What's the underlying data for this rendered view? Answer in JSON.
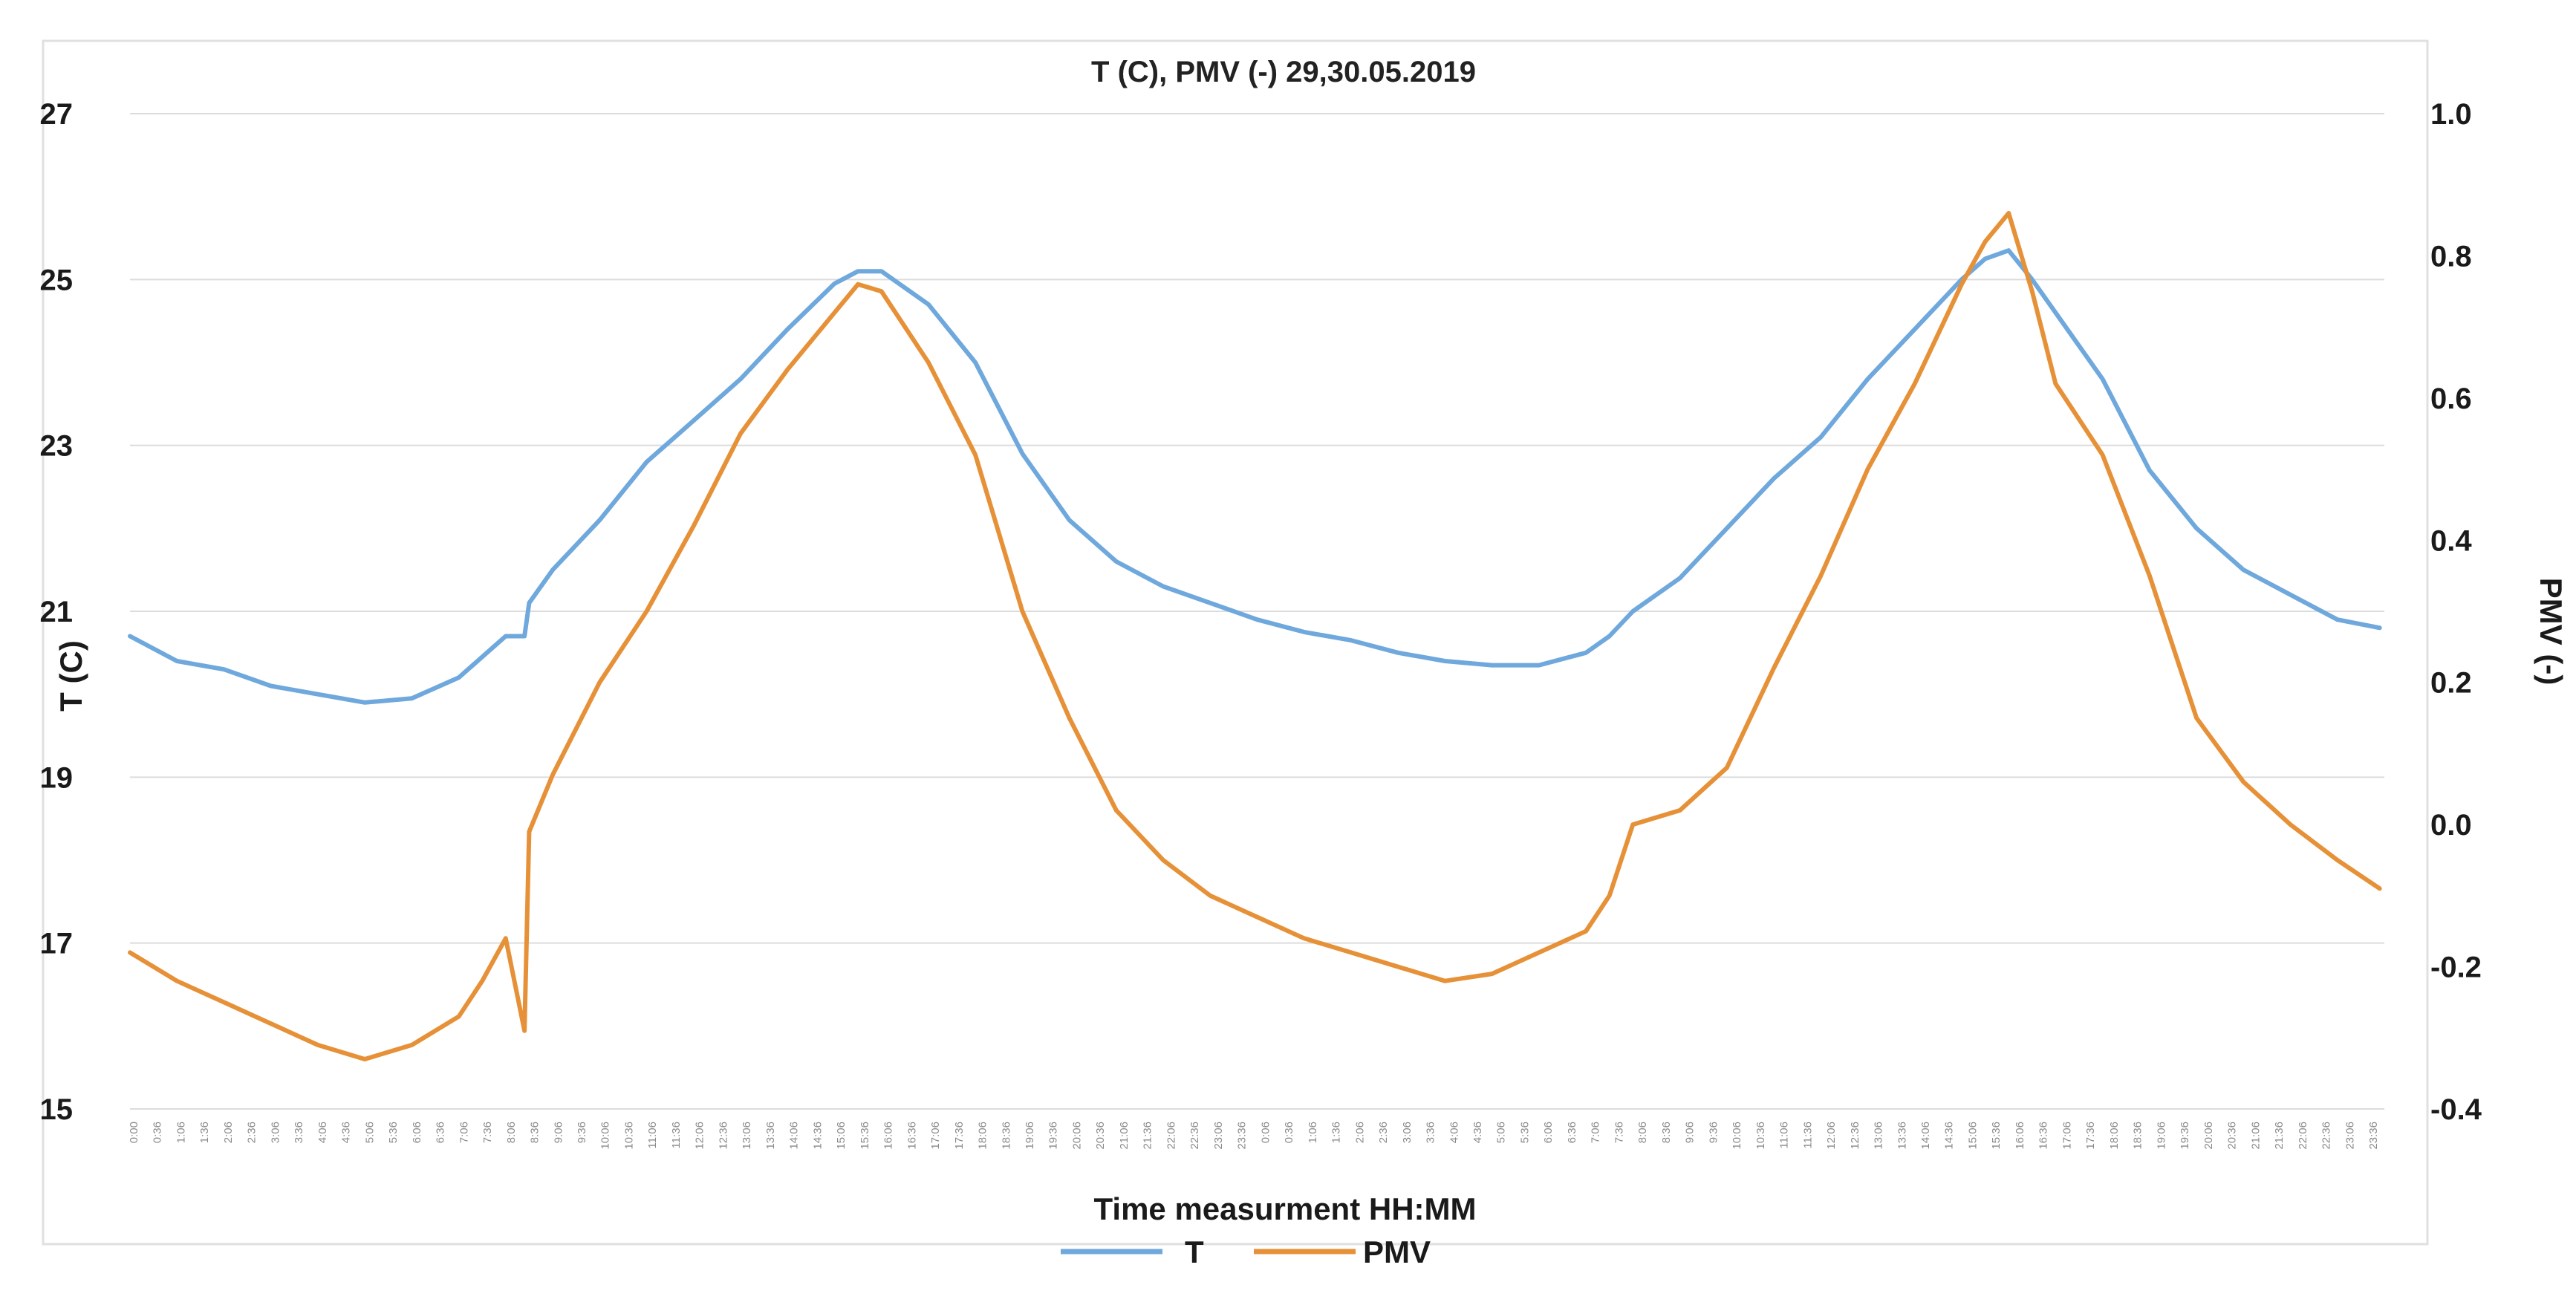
{
  "chart_data": {
    "type": "line",
    "title": "T (C), PMV (-) 29,30.05.2019",
    "xlabel": "Time measurment HH:MM",
    "ylabel_left": "T (C)",
    "ylabel_right": "PMV (-)",
    "y_left_lim": [
      15,
      27
    ],
    "y_right_lim": [
      -0.4,
      1.0
    ],
    "y_left_ticks": [
      "15",
      "17",
      "19",
      "21",
      "23",
      "25",
      "27"
    ],
    "y_right_ticks": [
      "-0.4",
      "-0.2",
      "0.0",
      "0.2",
      "0.4",
      "0.6",
      "0.8",
      "1.0"
    ],
    "x_ticks": [
      "0:00",
      "0:36",
      "1:06",
      "1:36",
      "2:06",
      "2:36",
      "3:06",
      "3:36",
      "4:06",
      "4:36",
      "5:06",
      "5:36",
      "6:06",
      "6:36",
      "7:06",
      "7:36",
      "8:06",
      "8:36",
      "9:06",
      "9:36",
      "10:06",
      "10:36",
      "11:06",
      "11:36",
      "12:06",
      "12:36",
      "13:06",
      "13:36",
      "14:06",
      "14:36",
      "15:06",
      "15:36",
      "16:06",
      "16:36",
      "17:06",
      "17:36",
      "18:06",
      "18:36",
      "19:06",
      "19:36",
      "20:06",
      "20:36",
      "21:06",
      "21:36",
      "22:06",
      "22:36",
      "23:06",
      "23:36",
      "0:06",
      "0:36",
      "1:06",
      "1:36",
      "2:06",
      "2:36",
      "3:06",
      "3:36",
      "4:06",
      "4:36",
      "5:06",
      "5:36",
      "6:06",
      "6:36",
      "7:06",
      "7:36",
      "8:06",
      "8:36",
      "9:06",
      "9:36",
      "10:06",
      "10:36",
      "11:06",
      "11:36",
      "12:06",
      "12:36",
      "13:06",
      "13:36",
      "14:06",
      "14:36",
      "15:06",
      "15:36",
      "16:06",
      "16:36",
      "17:06",
      "17:36",
      "18:06",
      "18:36",
      "19:06",
      "19:36",
      "20:06",
      "20:36",
      "21:06",
      "21:36",
      "22:06",
      "22:36",
      "23:06",
      "23:36"
    ],
    "x_hours": [
      0,
      1,
      2,
      3,
      4,
      5,
      6,
      7,
      7.5,
      8,
      8.4,
      8.5,
      9,
      10,
      11,
      12,
      13,
      14,
      15,
      15.5,
      16,
      17,
      18,
      19,
      20,
      21,
      22,
      23,
      24,
      25,
      26,
      27,
      28,
      29,
      30,
      31,
      31.5,
      32,
      33,
      34,
      35,
      36,
      37,
      38,
      39,
      39.5,
      40,
      40.5,
      41,
      42,
      43,
      44,
      45,
      46,
      47,
      47.9
    ],
    "legend": [
      "T",
      "PMV"
    ],
    "legend_position": "bottom-center",
    "series": [
      {
        "name": "T",
        "axis": "left",
        "color": "#6fa8dc",
        "values": [
          20.7,
          20.4,
          20.3,
          20.1,
          20.0,
          19.9,
          19.95,
          20.2,
          20.45,
          20.7,
          20.7,
          21.1,
          21.5,
          22.1,
          22.8,
          23.3,
          23.8,
          24.4,
          24.95,
          25.1,
          25.1,
          24.7,
          24.0,
          22.9,
          22.1,
          21.6,
          21.3,
          21.1,
          20.9,
          20.75,
          20.65,
          20.5,
          20.4,
          20.35,
          20.35,
          20.5,
          20.7,
          21.0,
          21.4,
          22.0,
          22.6,
          23.1,
          23.8,
          24.4,
          25.0,
          25.25,
          25.35,
          25.0,
          24.6,
          23.8,
          22.7,
          22.0,
          21.5,
          21.2,
          20.9,
          20.8
        ]
      },
      {
        "name": "PMV",
        "axis": "right",
        "color": "#e69138",
        "values": [
          -0.18,
          -0.22,
          -0.25,
          -0.28,
          -0.31,
          -0.33,
          -0.31,
          -0.27,
          -0.22,
          -0.16,
          -0.29,
          -0.01,
          0.07,
          0.2,
          0.3,
          0.42,
          0.55,
          0.64,
          0.72,
          0.76,
          0.75,
          0.65,
          0.52,
          0.3,
          0.15,
          0.02,
          -0.05,
          -0.1,
          -0.13,
          -0.16,
          -0.18,
          -0.2,
          -0.22,
          -0.21,
          -0.18,
          -0.15,
          -0.1,
          0.0,
          0.02,
          0.08,
          0.22,
          0.35,
          0.5,
          0.62,
          0.76,
          0.82,
          0.86,
          0.75,
          0.62,
          0.52,
          0.35,
          0.15,
          0.06,
          0.0,
          -0.05,
          -0.09
        ]
      }
    ]
  }
}
